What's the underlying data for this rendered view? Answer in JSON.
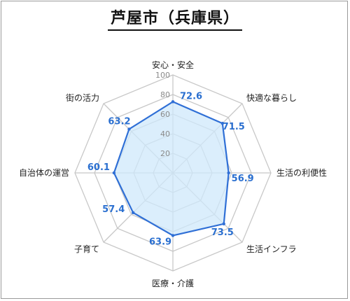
{
  "title": "芦屋市（兵庫県）",
  "colors": {
    "series_line": "#2f6fd6",
    "series_fill": "#cfe8fb",
    "grid": "#c8c8c8",
    "value_text": "#2a6fd0"
  },
  "chart_data": {
    "type": "radar",
    "title": "芦屋市（兵庫県）",
    "categories": [
      "安心・安全",
      "快適な暮らし",
      "生活の利便性",
      "生活インフラ",
      "医療・介護",
      "子育て",
      "自治体の運営",
      "街の活力"
    ],
    "values": [
      72.6,
      71.5,
      56.9,
      73.5,
      63.9,
      57.4,
      60.1,
      63.2
    ],
    "value_labels": [
      "72.6",
      "71.5",
      "56.9",
      "73.5",
      "63.9",
      "57.4",
      "60.1",
      "63.2"
    ],
    "ticks": [
      20,
      40,
      60,
      80,
      100
    ],
    "tick_labels": [
      "20",
      "40",
      "60",
      "80",
      "100"
    ],
    "range": [
      0,
      100
    ],
    "grid": true,
    "legend": "none"
  }
}
